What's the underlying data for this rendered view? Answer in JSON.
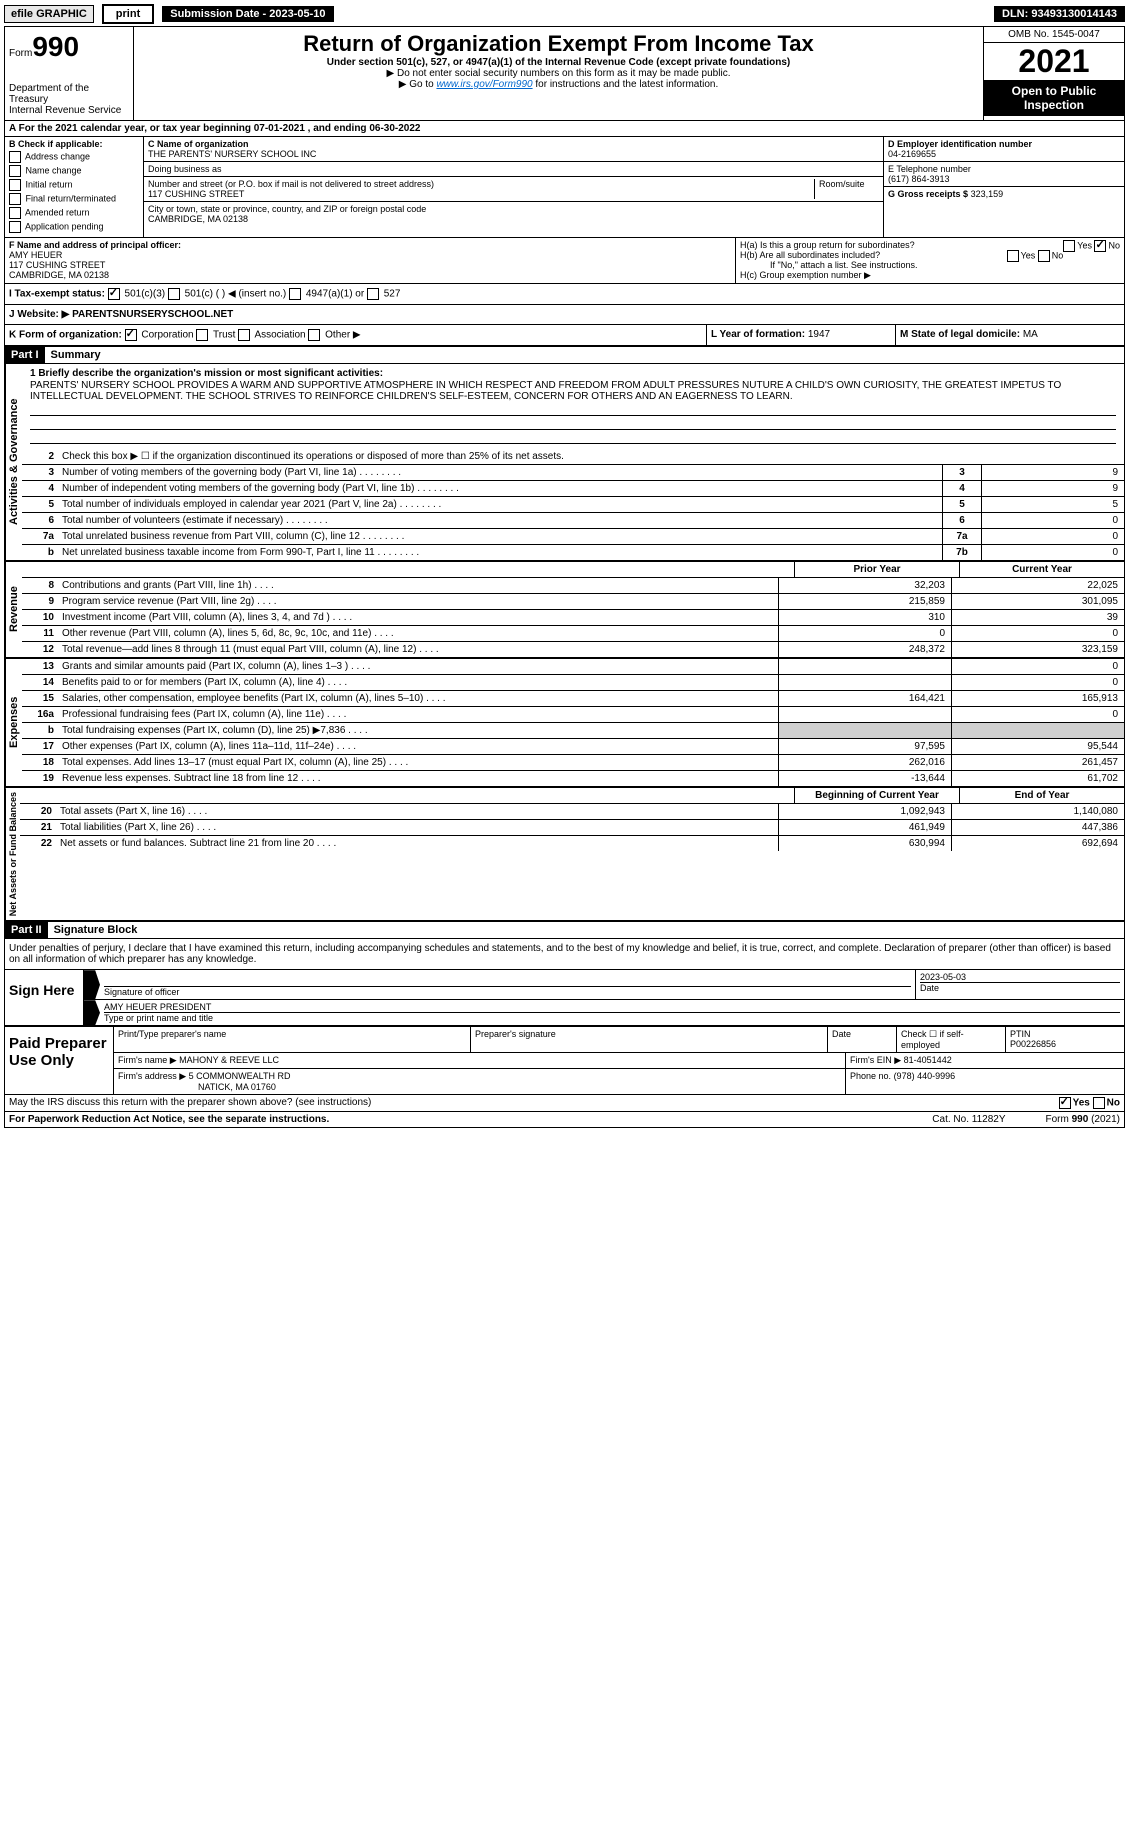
{
  "top_bar": {
    "efile": "efile GRAPHIC",
    "print": "print",
    "submission_date": "Submission Date - 2023-05-10",
    "dln": "DLN: 93493130014143"
  },
  "header": {
    "form_label": "Form",
    "form_number": "990",
    "main_title": "Return of Organization Exempt From Income Tax",
    "subtitle": "Under section 501(c), 527, or 4947(a)(1) of the Internal Revenue Code (except private foundations)",
    "instr1": "▶ Do not enter social security numbers on this form as it may be made public.",
    "instr2": "▶ Go to ",
    "instr2_link": "www.irs.gov/Form990",
    "instr2_tail": " for instructions and the latest information.",
    "omb": "OMB No. 1545-0047",
    "year": "2021",
    "open_public": "Open to Public Inspection",
    "dept": "Department of the Treasury",
    "irs": "Internal Revenue Service"
  },
  "section_a": "A For the 2021 calendar year, or tax year beginning 07-01-2021    , and ending 06-30-2022",
  "section_b": {
    "label": "B Check if applicable:",
    "items": [
      "Address change",
      "Name change",
      "Initial return",
      "Final return/terminated",
      "Amended return",
      "Application pending"
    ]
  },
  "section_c": {
    "name_label": "C Name of organization",
    "name": "THE PARENTS' NURSERY SCHOOL INC",
    "dba_label": "Doing business as",
    "street_label": "Number and street (or P.O. box if mail is not delivered to street address)",
    "room_label": "Room/suite",
    "street": "117 CUSHING STREET",
    "city_label": "City or town, state or province, country, and ZIP or foreign postal code",
    "city": "CAMBRIDGE, MA  02138"
  },
  "section_d": {
    "label": "D Employer identification number",
    "value": "04-2169655"
  },
  "section_e": {
    "label": "E Telephone number",
    "value": "(617) 864-3913"
  },
  "section_g": {
    "label": "G Gross receipts $",
    "value": "323,159"
  },
  "section_f": {
    "label": "F Name and address of principal officer:",
    "name": "AMY HEUER",
    "street": "117 CUSHING STREET",
    "city": "CAMBRIDGE, MA  02138"
  },
  "section_h": {
    "ha": "H(a)  Is this a group return for subordinates?",
    "hb": "H(b)  Are all subordinates included?",
    "hb_note": "If \"No,\" attach a list. See instructions.",
    "hc": "H(c)  Group exemption number ▶",
    "yes": "Yes",
    "no": "No"
  },
  "section_i": {
    "label": "I    Tax-exempt status:",
    "opts": [
      "501(c)(3)",
      "501(c) (  ) ◀ (insert no.)",
      "4947(a)(1) or",
      "527"
    ]
  },
  "section_j": {
    "label": "J    Website: ▶",
    "value": "PARENTSNURSERYSCHOOL.NET"
  },
  "section_k": {
    "label": "K Form of organization:",
    "opts": [
      "Corporation",
      "Trust",
      "Association",
      "Other ▶"
    ]
  },
  "section_l": {
    "label": "L Year of formation:",
    "value": "1947"
  },
  "section_m": {
    "label": "M State of legal domicile:",
    "value": "MA"
  },
  "part1": {
    "header": "Part I",
    "title": "Summary",
    "line1_label": "1  Briefly describe the organization's mission or most significant activities:",
    "mission": "PARENTS' NURSERY SCHOOL PROVIDES A WARM AND SUPPORTIVE ATMOSPHERE IN WHICH RESPECT AND FREEDOM FROM ADULT PRESSURES NUTURE A CHILD'S OWN CURIOSITY, THE GREATEST IMPETUS TO INTELLECTUAL DEVELOPMENT. THE SCHOOL STRIVES TO REINFORCE CHILDREN'S SELF-ESTEEM, CONCERN FOR OTHERS AND AN EAGERNESS TO LEARN.",
    "line2": "Check this box ▶ ☐ if the organization discontinued its operations or disposed of more than 25% of its net assets.",
    "gov_label": "Activities & Governance",
    "rows_gov": [
      {
        "n": "3",
        "d": "Number of voting members of the governing body (Part VI, line 1a)",
        "box": "3",
        "v": "9"
      },
      {
        "n": "4",
        "d": "Number of independent voting members of the governing body (Part VI, line 1b)",
        "box": "4",
        "v": "9"
      },
      {
        "n": "5",
        "d": "Total number of individuals employed in calendar year 2021 (Part V, line 2a)",
        "box": "5",
        "v": "5"
      },
      {
        "n": "6",
        "d": "Total number of volunteers (estimate if necessary)",
        "box": "6",
        "v": "0"
      },
      {
        "n": "7a",
        "d": "Total unrelated business revenue from Part VIII, column (C), line 12",
        "box": "7a",
        "v": "0"
      },
      {
        "n": "b",
        "d": "Net unrelated business taxable income from Form 990-T, Part I, line 11",
        "box": "7b",
        "v": "0"
      }
    ],
    "prior_year": "Prior Year",
    "current_year": "Current Year",
    "rev_label": "Revenue",
    "rows_rev": [
      {
        "n": "8",
        "d": "Contributions and grants (Part VIII, line 1h)",
        "p": "32,203",
        "c": "22,025"
      },
      {
        "n": "9",
        "d": "Program service revenue (Part VIII, line 2g)",
        "p": "215,859",
        "c": "301,095"
      },
      {
        "n": "10",
        "d": "Investment income (Part VIII, column (A), lines 3, 4, and 7d )",
        "p": "310",
        "c": "39"
      },
      {
        "n": "11",
        "d": "Other revenue (Part VIII, column (A), lines 5, 6d, 8c, 9c, 10c, and 11e)",
        "p": "0",
        "c": "0"
      },
      {
        "n": "12",
        "d": "Total revenue—add lines 8 through 11 (must equal Part VIII, column (A), line 12)",
        "p": "248,372",
        "c": "323,159"
      }
    ],
    "exp_label": "Expenses",
    "rows_exp": [
      {
        "n": "13",
        "d": "Grants and similar amounts paid (Part IX, column (A), lines 1–3 )",
        "p": "",
        "c": "0"
      },
      {
        "n": "14",
        "d": "Benefits paid to or for members (Part IX, column (A), line 4)",
        "p": "",
        "c": "0"
      },
      {
        "n": "15",
        "d": "Salaries, other compensation, employee benefits (Part IX, column (A), lines 5–10)",
        "p": "164,421",
        "c": "165,913"
      },
      {
        "n": "16a",
        "d": "Professional fundraising fees (Part IX, column (A), line 11e)",
        "p": "",
        "c": "0"
      },
      {
        "n": "b",
        "d": "Total fundraising expenses (Part IX, column (D), line 25) ▶7,836",
        "p": "__grey__",
        "c": "__grey__"
      },
      {
        "n": "17",
        "d": "Other expenses (Part IX, column (A), lines 11a–11d, 11f–24e)",
        "p": "97,595",
        "c": "95,544"
      },
      {
        "n": "18",
        "d": "Total expenses. Add lines 13–17 (must equal Part IX, column (A), line 25)",
        "p": "262,016",
        "c": "261,457"
      },
      {
        "n": "19",
        "d": "Revenue less expenses. Subtract line 18 from line 12",
        "p": "-13,644",
        "c": "61,702"
      }
    ],
    "net_label": "Net Assets or Fund Balances",
    "boy": "Beginning of Current Year",
    "eoy": "End of Year",
    "rows_net": [
      {
        "n": "20",
        "d": "Total assets (Part X, line 16)",
        "p": "1,092,943",
        "c": "1,140,080"
      },
      {
        "n": "21",
        "d": "Total liabilities (Part X, line 26)",
        "p": "461,949",
        "c": "447,386"
      },
      {
        "n": "22",
        "d": "Net assets or fund balances. Subtract line 21 from line 20",
        "p": "630,994",
        "c": "692,694"
      }
    ]
  },
  "part2": {
    "header": "Part II",
    "title": "Signature Block",
    "declaration": "Under penalties of perjury, I declare that I have examined this return, including accompanying schedules and statements, and to the best of my knowledge and belief, it is true, correct, and complete. Declaration of preparer (other than officer) is based on all information of which preparer has any knowledge."
  },
  "sign": {
    "label": "Sign Here",
    "sig_label": "Signature of officer",
    "date_label": "Date",
    "date": "2023-05-03",
    "name": "AMY HEUER  PRESIDENT",
    "name_label": "Type or print name and title"
  },
  "preparer": {
    "label": "Paid Preparer Use Only",
    "h1": "Print/Type preparer's name",
    "h2": "Preparer's signature",
    "h3": "Date",
    "h4": "Check ☐ if self-employed",
    "h5": "PTIN",
    "ptin": "P00226856",
    "firm_label": "Firm's name    ▶",
    "firm": "MAHONY & REEVE LLC",
    "ein_label": "Firm's EIN ▶",
    "ein": "81-4051442",
    "addr_label": "Firm's address ▶",
    "addr1": "5 COMMONWEALTH RD",
    "addr2": "NATICK, MA  01760",
    "phone_label": "Phone no.",
    "phone": "(978) 440-9996"
  },
  "footer": {
    "discuss": "May the IRS discuss this return with the preparer shown above? (see instructions)",
    "yes": "Yes",
    "no": "No",
    "paperwork": "For Paperwork Reduction Act Notice, see the separate instructions.",
    "cat": "Cat. No. 11282Y",
    "form": "Form 990 (2021)"
  }
}
